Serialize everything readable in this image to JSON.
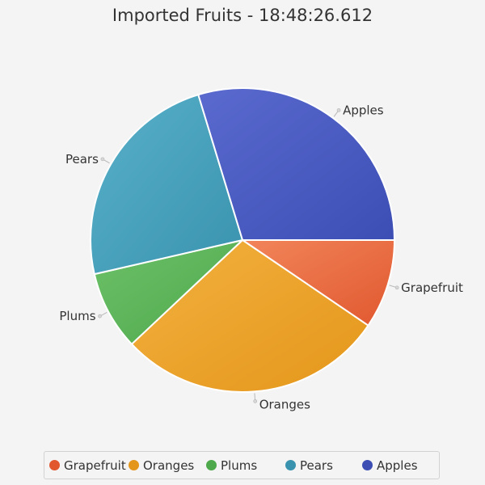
{
  "chart_data": {
    "type": "pie",
    "title": "Imported Fruits - 18:48:26.612",
    "slices": [
      {
        "label": "Grapefruit",
        "value": 9.5,
        "color": "#e1582f",
        "color_light": "#f2855a"
      },
      {
        "label": "Oranges",
        "value": 28.5,
        "color": "#e4961a",
        "color_light": "#f3b140"
      },
      {
        "label": "Plums",
        "value": 8.4,
        "color": "#4ea84c",
        "color_light": "#6dc168"
      },
      {
        "label": "Pears",
        "value": 23.9,
        "color": "#3a93ae",
        "color_light": "#58b0ca"
      },
      {
        "label": "Apples",
        "value": 29.7,
        "color": "#3c4eb4",
        "color_light": "#5a6acf"
      }
    ],
    "start_angle": "3 o'clock",
    "direction": "clockwise",
    "legend_position": "bottom"
  }
}
